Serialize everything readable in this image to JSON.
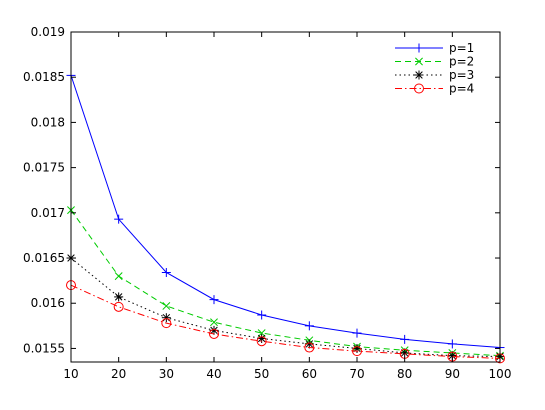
{
  "chart_data": {
    "type": "line",
    "title": "",
    "xlabel": "",
    "ylabel": "",
    "x": [
      10,
      20,
      30,
      40,
      50,
      60,
      70,
      80,
      90,
      100
    ],
    "xlim": [
      10,
      100
    ],
    "ylim": [
      0.01535,
      0.019
    ],
    "xticks": [
      10,
      20,
      30,
      40,
      50,
      60,
      70,
      80,
      90,
      100
    ],
    "yticks": [
      0.0155,
      0.016,
      0.0165,
      0.017,
      0.0175,
      0.018,
      0.0185,
      0.019
    ],
    "ytick_labels": [
      "0.0155",
      "0.016",
      "0.0165",
      "0.017",
      "0.0175",
      "0.018",
      "0.0185",
      "0.019"
    ],
    "grid": false,
    "legend_position": "top-right",
    "series": [
      {
        "name": "p=1",
        "color": "#0000ff",
        "line_style": "solid",
        "marker": "plus",
        "values": [
          0.01852,
          0.01693,
          0.01634,
          0.01604,
          0.01587,
          0.01575,
          0.01567,
          0.0156,
          0.01555,
          0.01551
        ]
      },
      {
        "name": "p=2",
        "color": "#00cc00",
        "line_style": "dashed",
        "marker": "x",
        "values": [
          0.01703,
          0.0163,
          0.01597,
          0.01579,
          0.01567,
          0.01559,
          0.01552,
          0.01548,
          0.01545,
          0.01542
        ]
      },
      {
        "name": "p=3",
        "color": "#000000",
        "line_style": "dotted",
        "marker": "star",
        "values": [
          0.0165,
          0.01607,
          0.01584,
          0.0157,
          0.01561,
          0.01555,
          0.0155,
          0.01545,
          0.01542,
          0.01541
        ]
      },
      {
        "name": "p=4",
        "color": "#ff0000",
        "line_style": "dashdot",
        "marker": "circle",
        "values": [
          0.0162,
          0.01596,
          0.01578,
          0.01566,
          0.01558,
          0.01551,
          0.01547,
          0.01544,
          0.01541,
          0.01539
        ]
      }
    ]
  }
}
